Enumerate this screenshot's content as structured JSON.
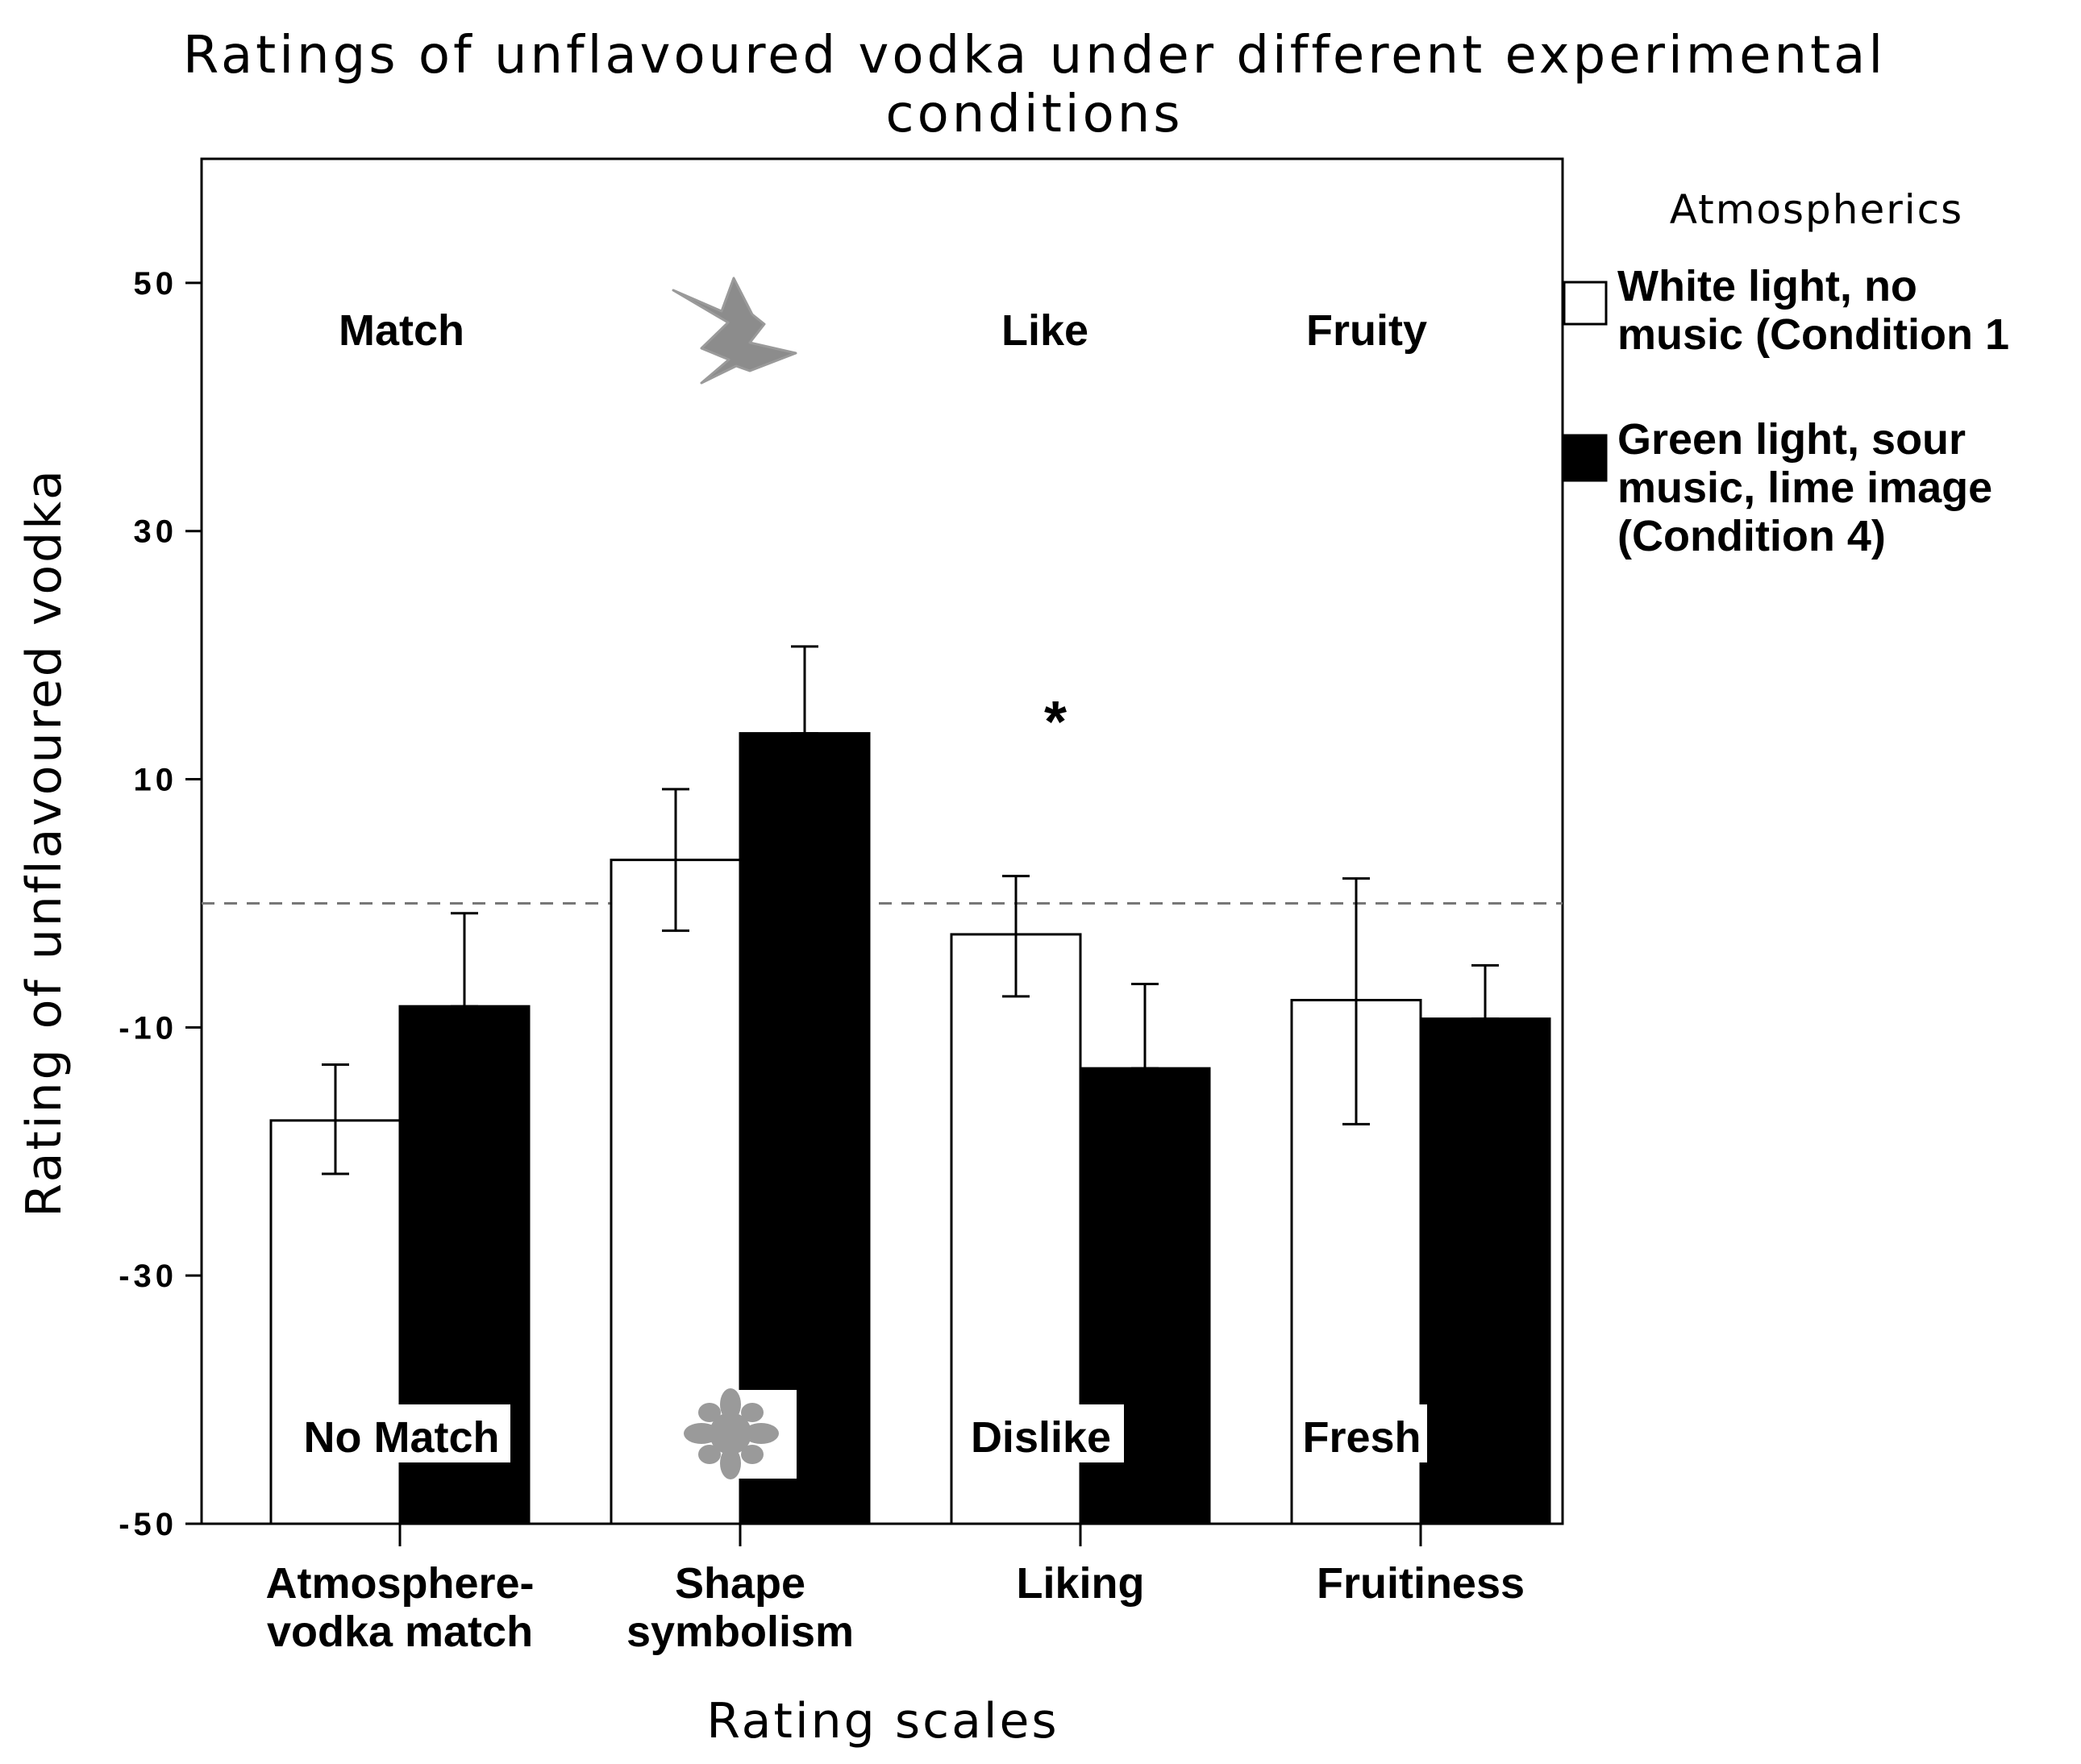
{
  "chart_data": {
    "type": "bar",
    "title": [
      "Ratings of unflavoured vodka under different experimental",
      "conditions"
    ],
    "xlabel": "Rating scales",
    "ylabel": "Rating of unflavoured vodka",
    "ylim": [
      -50,
      60
    ],
    "yticks": [
      "50",
      "30",
      "10",
      "-10",
      "-30",
      "-50"
    ],
    "ytick_values": [
      50,
      30,
      10,
      -10,
      -30,
      -50
    ],
    "reference_line": 0,
    "categories": [
      [
        "Atmosphere-",
        "vodka match"
      ],
      [
        "Shape",
        "symbolism"
      ],
      [
        "Liking"
      ],
      [
        "Fruitiness"
      ]
    ],
    "series": [
      {
        "name": [
          "White light, no",
          "music (Condition 1"
        ],
        "color": "#ffffff",
        "values": [
          -17.5,
          3.5,
          -2.5,
          -7.8
        ],
        "error_low": [
          -21.8,
          -2.2,
          -7.5,
          -17.8
        ],
        "error_high": [
          -13,
          9.2,
          2.2,
          2
        ]
      },
      {
        "name": [
          "Green light, sour",
          "music, lime image",
          "(Condition 4)"
        ],
        "color": "#000000",
        "values": [
          -8.3,
          13.7,
          -13.3,
          -9.3
        ],
        "error_low": [
          -8.3,
          13.7,
          -13.3,
          -9.3
        ],
        "error_high": [
          -0.8,
          20.7,
          -6.5,
          -5
        ]
      }
    ],
    "top_anchor_labels": [
      "Match",
      "",
      "Like",
      "Fruity"
    ],
    "bottom_anchor_labels": [
      "No Match",
      "",
      "Dislike",
      "Fresh"
    ],
    "significance_marks": [
      {
        "category": 2,
        "label": "*"
      }
    ],
    "legend": {
      "title": "Atmospherics",
      "placement": "right"
    },
    "grid": false
  }
}
